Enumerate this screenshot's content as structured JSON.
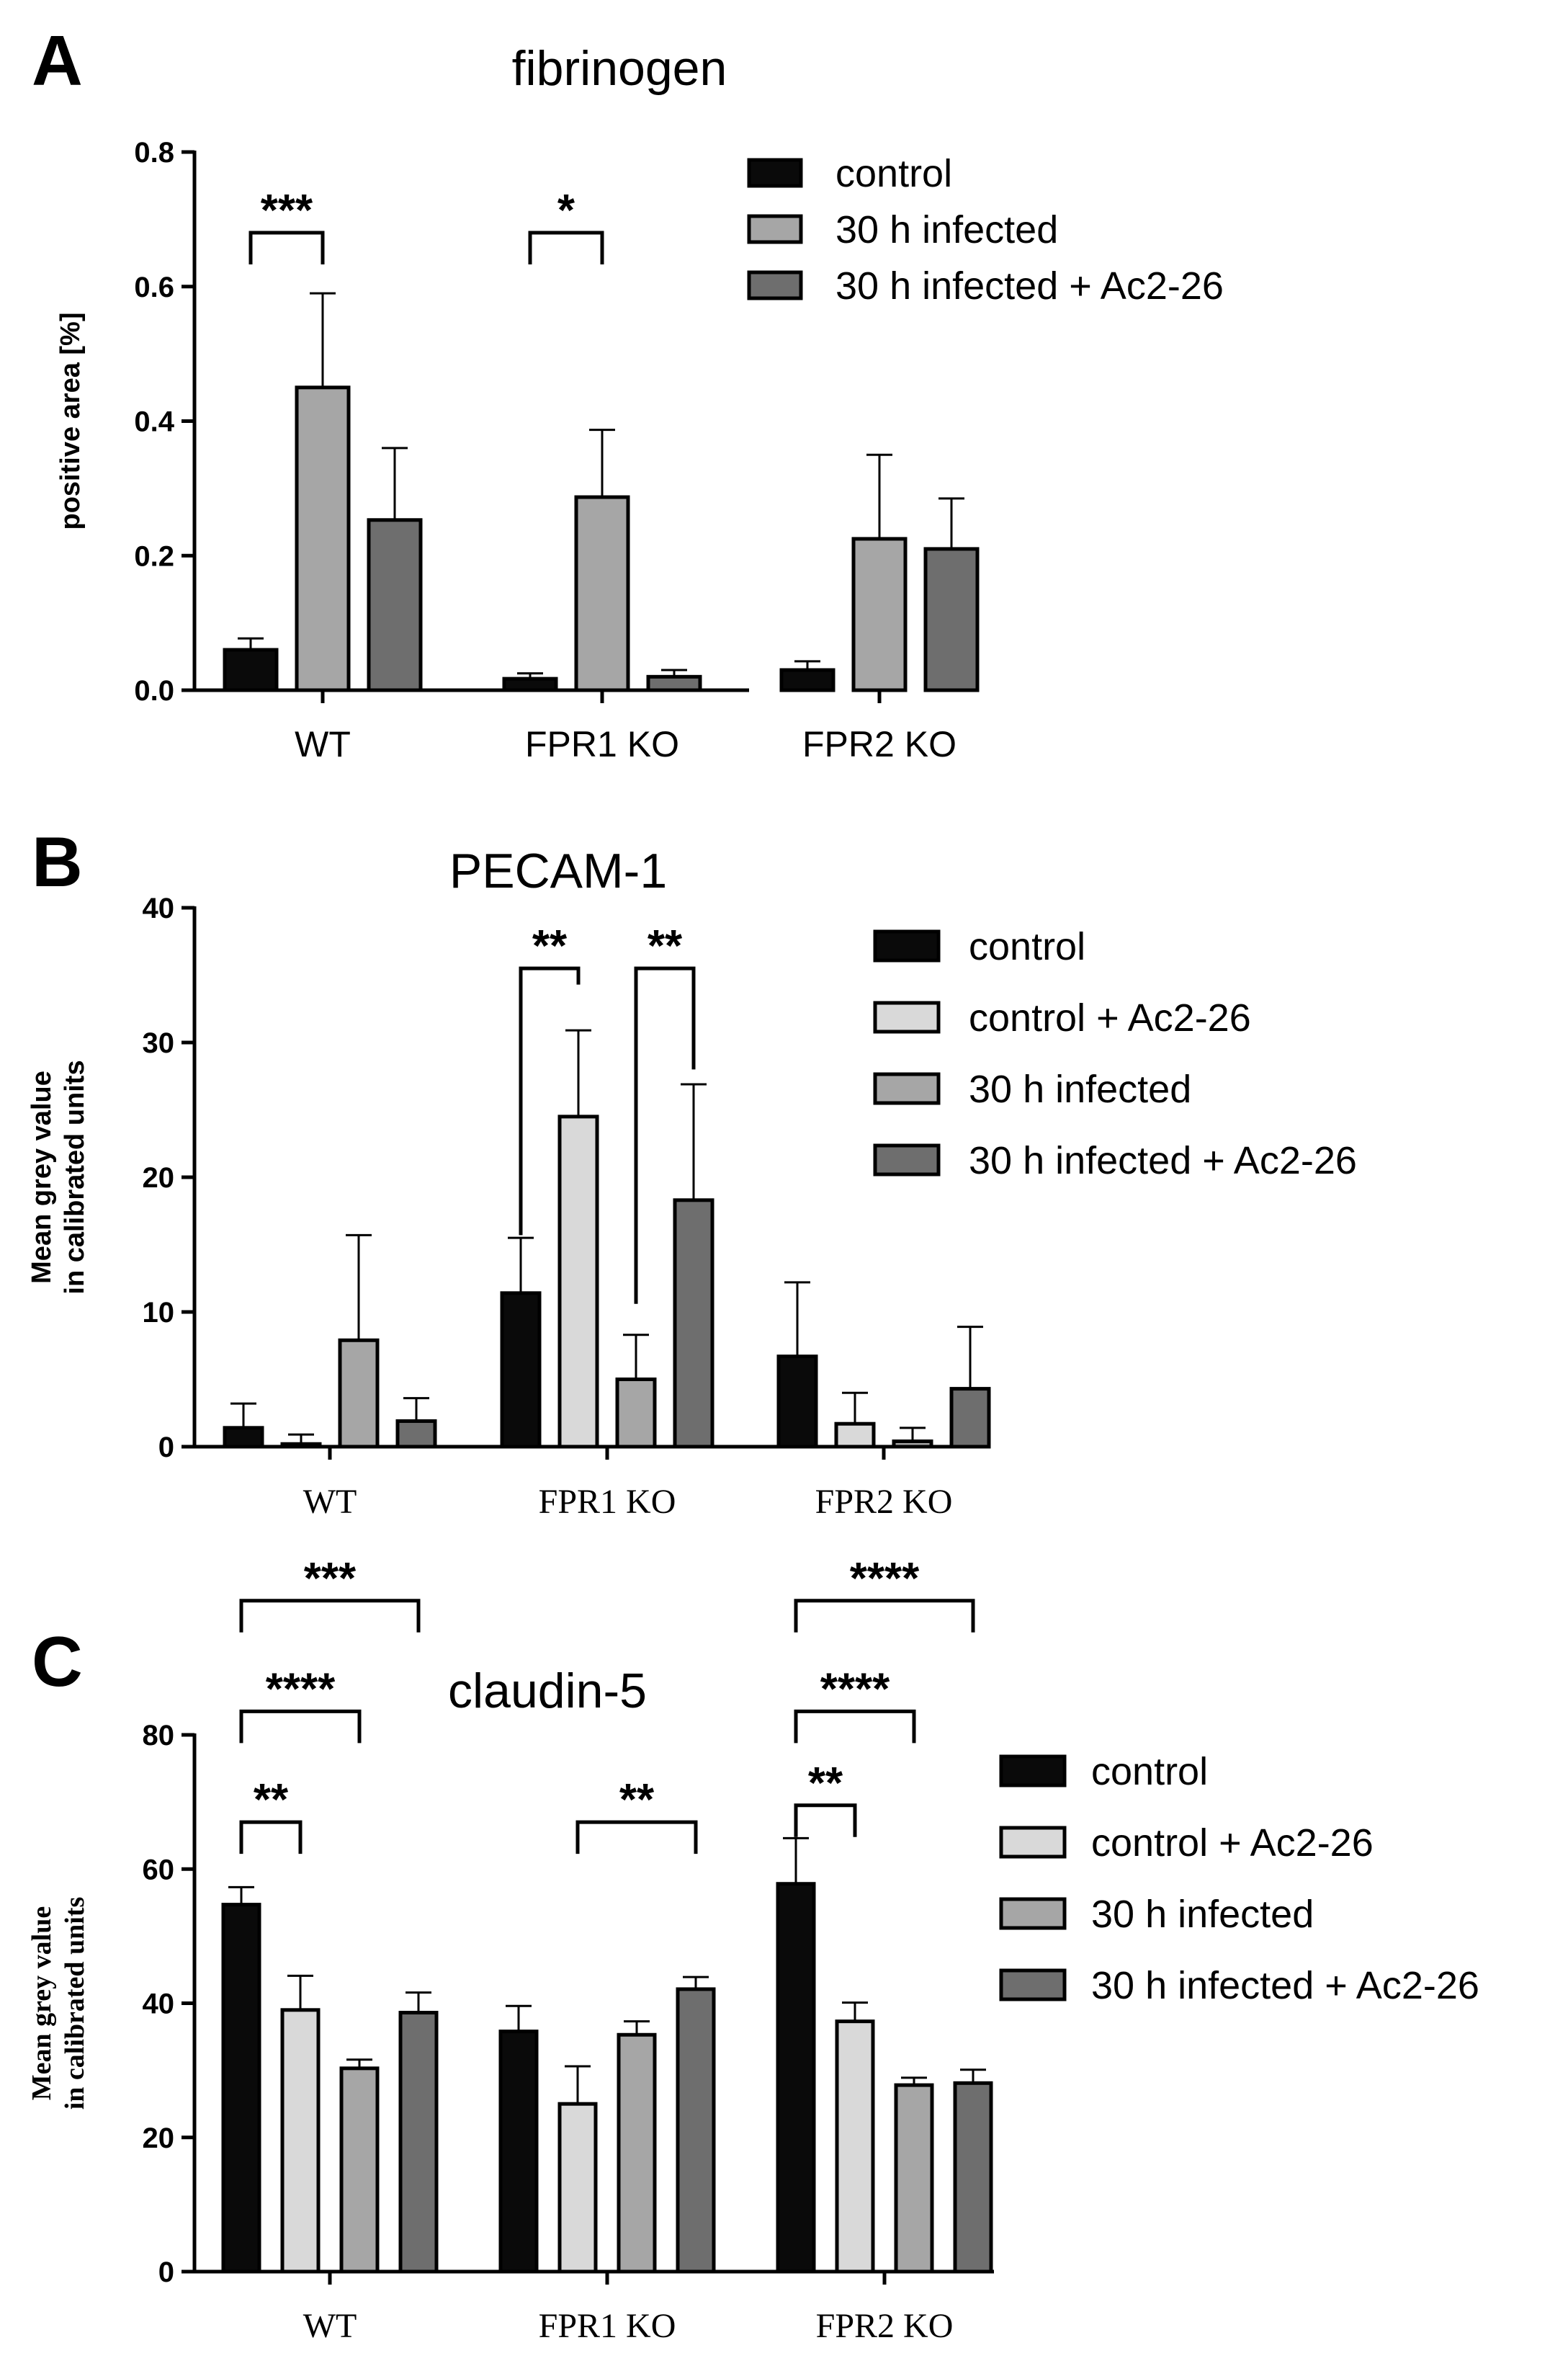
{
  "chart_data": [
    {
      "panel_letter": "A",
      "type": "bar",
      "title": "fibrinogen",
      "ylabel": "positive area [%]",
      "ylim": [
        0,
        0.8
      ],
      "yticks": [
        0.0,
        0.2,
        0.4,
        0.6,
        0.8
      ],
      "ytick_labels": [
        "0.0",
        "0.2",
        "0.4",
        "0.6",
        "0.8"
      ],
      "categories": [
        "WT",
        "FPR1 KO",
        "FPR2 KO"
      ],
      "legend_position": "top-right",
      "series": [
        {
          "name": "control",
          "color": "#0a0a0a",
          "values": [
            0.06,
            0.017,
            0.03
          ],
          "errors": [
            0.017,
            0.008,
            0.013
          ]
        },
        {
          "name": "30 h infected",
          "color": "#a6a6a6",
          "values": [
            0.45,
            0.287,
            0.225
          ],
          "errors": [
            0.14,
            0.1,
            0.125
          ]
        },
        {
          "name": "30 h infected + Ac2-26",
          "color": "#6e6e6e",
          "values": [
            0.253,
            0.02,
            0.21
          ],
          "errors": [
            0.107,
            0.01,
            0.075
          ]
        }
      ],
      "significance": [
        {
          "label": "***",
          "from": [
            0,
            0
          ],
          "to": [
            0,
            1
          ],
          "level": 0.68
        },
        {
          "label": "*",
          "from": [
            1,
            0
          ],
          "to": [
            1,
            1
          ],
          "level": 0.68
        }
      ]
    },
    {
      "panel_letter": "B",
      "type": "bar",
      "title": "PECAM-1",
      "ylabel_lines": [
        "Mean grey value",
        "in calibrated units"
      ],
      "ylim": [
        0,
        40
      ],
      "yticks": [
        0,
        10,
        20,
        30,
        40
      ],
      "ytick_labels": [
        "0",
        "10",
        "20",
        "30",
        "40"
      ],
      "categories": [
        "WT",
        "FPR1 KO",
        "FPR2 KO"
      ],
      "legend_position": "top-right",
      "series": [
        {
          "name": "control",
          "color": "#0a0a0a",
          "values": [
            1.4,
            11.4,
            6.7
          ],
          "errors": [
            1.8,
            4.1,
            5.5
          ]
        },
        {
          "name": "control + Ac2-26",
          "color": "#d9d9d9",
          "values": [
            0.2,
            24.5,
            1.7
          ],
          "errors": [
            0.7,
            6.4,
            2.3
          ]
        },
        {
          "name": "30 h infected",
          "color": "#a6a6a6",
          "values": [
            7.9,
            5.0,
            0.4
          ],
          "errors": [
            7.8,
            3.3,
            1.0
          ]
        },
        {
          "name": "30 h infected + Ac2-26",
          "color": "#6e6e6e",
          "values": [
            1.9,
            18.3,
            4.3
          ],
          "errors": [
            1.7,
            8.6,
            4.6
          ]
        }
      ],
      "significance": [
        {
          "label": "**",
          "from": [
            1,
            0
          ],
          "to": [
            1,
            1
          ],
          "left_drop": 15.7,
          "right_drop": 34.3,
          "level": 35.5
        },
        {
          "label": "**",
          "from": [
            1,
            2
          ],
          "to": [
            1,
            3
          ],
          "left_drop": 10.6,
          "right_drop": 28.0,
          "level": 35.5
        }
      ]
    },
    {
      "panel_letter": "C",
      "type": "bar",
      "title": "claudin-5",
      "ylabel_lines": [
        "Mean grey value",
        "in calibrated units"
      ],
      "ylim": [
        0,
        80
      ],
      "yticks": [
        0,
        20,
        40,
        60,
        80
      ],
      "ytick_labels": [
        "0",
        "20",
        "40",
        "60",
        "80"
      ],
      "categories": [
        "WT",
        "FPR1 KO",
        "FPR2 KO"
      ],
      "legend_position": "top-right",
      "series": [
        {
          "name": "control",
          "color": "#0a0a0a",
          "values": [
            54.7,
            35.8,
            57.8
          ],
          "errors": [
            2.6,
            3.8,
            6.8
          ]
        },
        {
          "name": "control + Ac2-26",
          "color": "#d9d9d9",
          "values": [
            39.0,
            25.0,
            37.3
          ],
          "errors": [
            5.1,
            5.6,
            2.8
          ]
        },
        {
          "name": "30 h infected",
          "color": "#a6a6a6",
          "values": [
            30.3,
            35.3,
            27.8
          ],
          "errors": [
            1.3,
            2.0,
            1.1
          ]
        },
        {
          "name": "30 h infected + Ac2-26",
          "color": "#6e6e6e",
          "values": [
            38.6,
            42.1,
            28.1
          ],
          "errors": [
            3.0,
            1.8,
            2.0
          ]
        }
      ],
      "significance": [
        {
          "label": "**",
          "from": [
            0,
            0
          ],
          "to": [
            0,
            1
          ],
          "level": 67.0
        },
        {
          "label": "****",
          "from": [
            0,
            0
          ],
          "to": [
            0,
            2
          ],
          "level": 83.5
        },
        {
          "label": "***",
          "from": [
            0,
            0
          ],
          "to": [
            0,
            3
          ],
          "level": 100.0
        },
        {
          "label": "**",
          "from": [
            1,
            1
          ],
          "to": [
            1,
            3
          ],
          "level": 67.0
        },
        {
          "label": "**",
          "from": [
            2,
            0
          ],
          "to": [
            2,
            1
          ],
          "level": 69.5
        },
        {
          "label": "****",
          "from": [
            2,
            0
          ],
          "to": [
            2,
            2
          ],
          "level": 83.5
        },
        {
          "label": "****",
          "from": [
            2,
            0
          ],
          "to": [
            2,
            3
          ],
          "level": 100.0
        }
      ]
    }
  ]
}
